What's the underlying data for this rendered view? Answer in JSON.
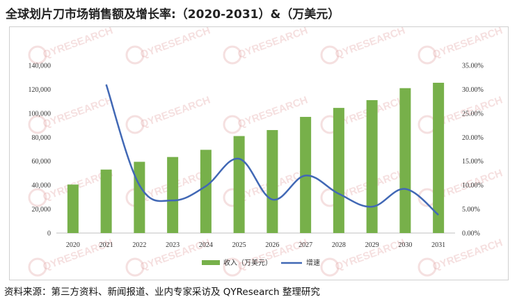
{
  "title": "全球划片刀市场销售额及增长率:（2020-2031）&（万美元）",
  "source": "资料来源：第三方资料、新闻报道、业内专家采访及 QYResearch 整理研究",
  "watermark_text": "QYRESEARCH",
  "colors": {
    "bar": "#77b04a",
    "line": "#4168b5",
    "grid": "#d9d9d9"
  },
  "chart_data": {
    "type": "bar+line",
    "title": "全球划片刀市场销售额及增长率:（2020-2031）&（万美元）",
    "categories": [
      "2020",
      "2021",
      "2022",
      "2023",
      "2024",
      "2025",
      "2026",
      "2027",
      "2028",
      "2029",
      "2030",
      "2031"
    ],
    "series": [
      {
        "name": "收入（万美元）",
        "type": "bar",
        "axis": "left",
        "values": [
          40500,
          53000,
          59500,
          63500,
          69500,
          81000,
          86000,
          97000,
          104500,
          111000,
          121000,
          125500
        ]
      },
      {
        "name": "增速",
        "type": "line",
        "axis": "right",
        "smooth": true,
        "values": [
          null,
          0.31,
          0.1,
          0.068,
          0.098,
          0.155,
          0.07,
          0.12,
          0.082,
          0.055,
          0.092,
          0.038
        ]
      }
    ],
    "left_axis": {
      "min": 0,
      "max": 140000,
      "step": 20000,
      "tick_labels": [
        "0",
        "20,000",
        "40,000",
        "60,000",
        "80,000",
        "100,000",
        "120,000",
        "140,000"
      ]
    },
    "right_axis": {
      "min": 0,
      "max": 0.35,
      "step": 0.05,
      "tick_labels": [
        "0.00%",
        "5.00%",
        "10.00%",
        "15.00%",
        "20.00%",
        "25.00%",
        "30.00%",
        "35.00%"
      ]
    },
    "grid": false,
    "legend": {
      "position": "bottom",
      "items": [
        "收入（万美元）",
        "增速"
      ]
    }
  }
}
